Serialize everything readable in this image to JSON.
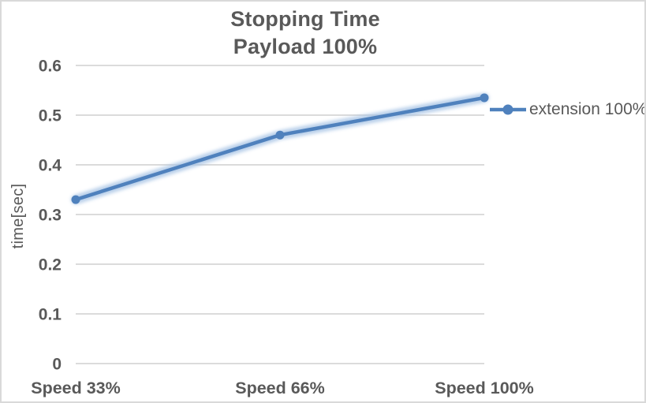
{
  "chart_data": {
    "type": "line",
    "title": "Stopping Time",
    "subtitle": "Payload 100%",
    "ylabel": "time[sec]",
    "xlabel": "",
    "categories": [
      "Speed 33%",
      "Speed 66%",
      "Speed 100%"
    ],
    "series": [
      {
        "name": "extension 100%",
        "values": [
          0.33,
          0.46,
          0.535
        ]
      }
    ],
    "ylim": [
      0,
      0.6
    ],
    "yticks": [
      0,
      0.1,
      0.2,
      0.3,
      0.4,
      0.5,
      0.6
    ],
    "ytick_labels": [
      "0",
      "0.1",
      "0.2",
      "0.3",
      "0.4",
      "0.5",
      "0.6"
    ],
    "grid": true,
    "marker": "circle",
    "legend_position": "right",
    "colors": {
      "series_line": "#4F81BD",
      "series_glow": "#A8C4E5",
      "gridline": "#D6D6D6",
      "text": "#595959",
      "chart_border": "#D9D9D9",
      "background": "#FFFFFF"
    }
  }
}
